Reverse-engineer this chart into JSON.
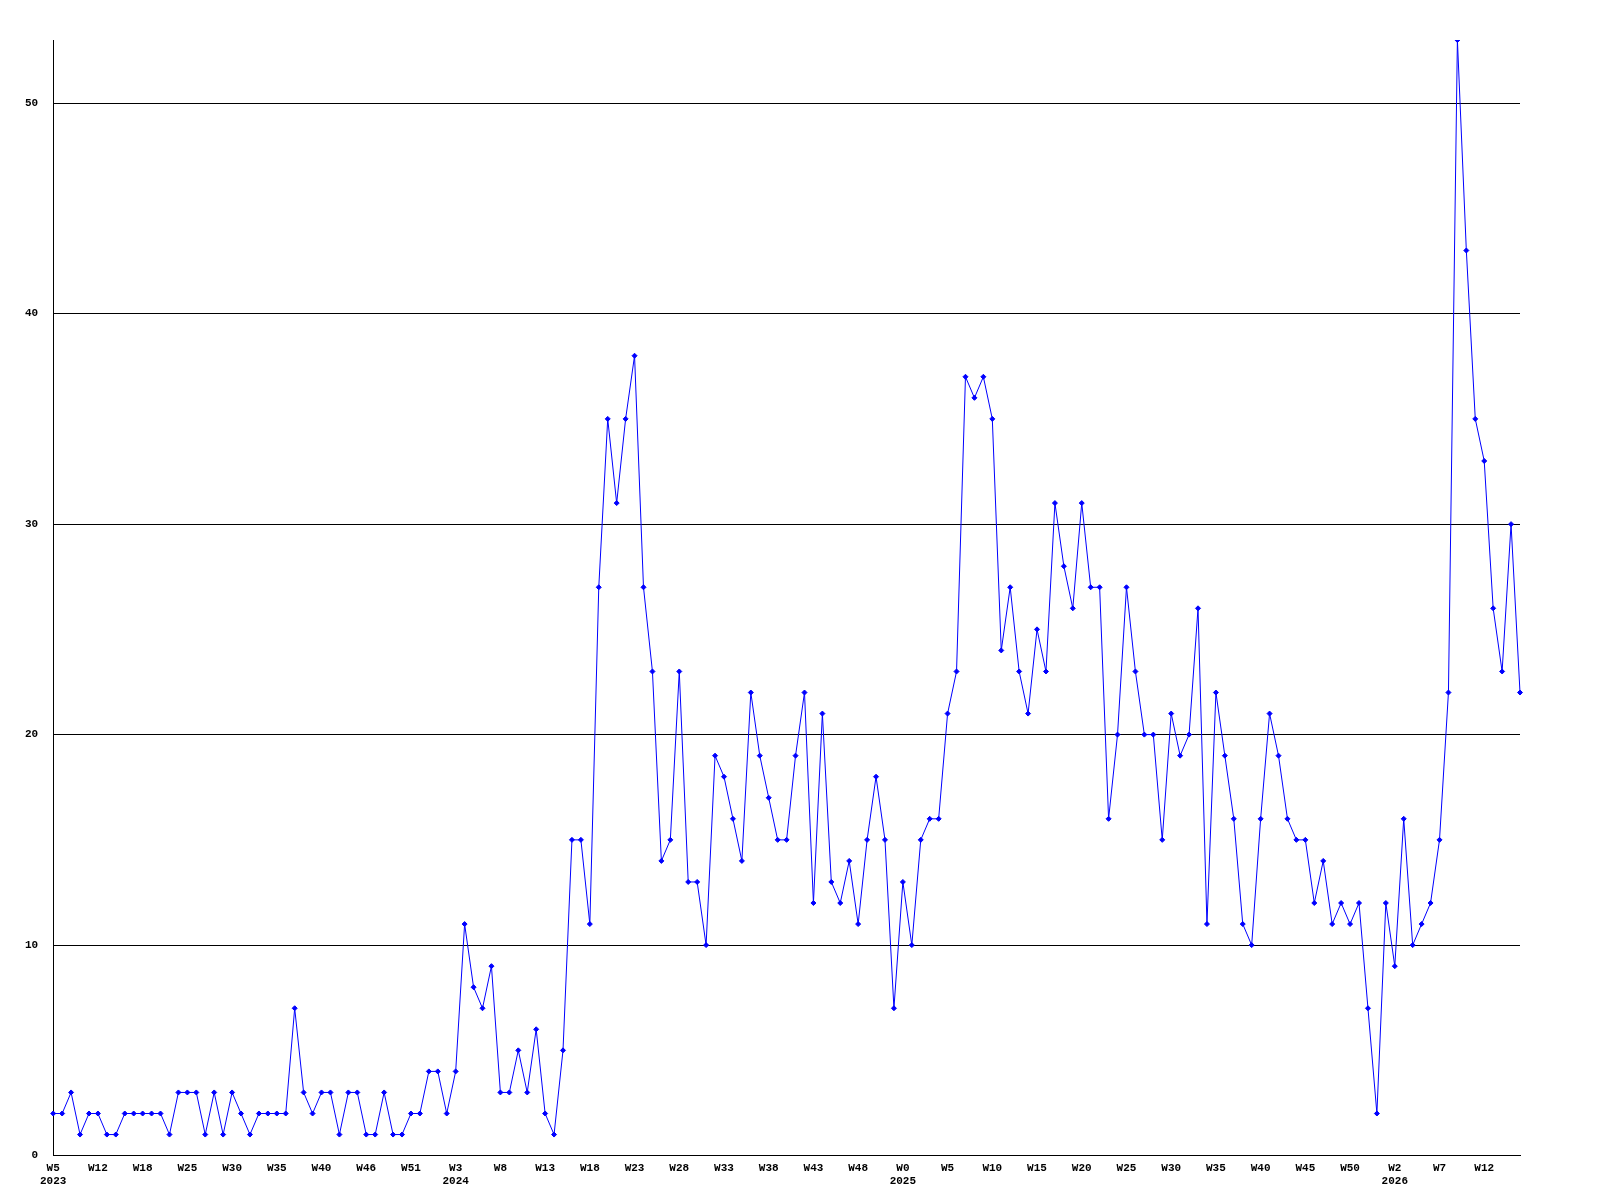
{
  "chart_data": {
    "type": "line",
    "categories": [
      "W5\n2023",
      null,
      null,
      null,
      null,
      "W12",
      null,
      null,
      null,
      null,
      "W18",
      null,
      null,
      null,
      null,
      "W25",
      null,
      null,
      null,
      null,
      "W30",
      null,
      null,
      null,
      null,
      "W35",
      null,
      null,
      null,
      null,
      "W40",
      null,
      null,
      null,
      null,
      "W46",
      null,
      null,
      null,
      null,
      "W51",
      null,
      null,
      null,
      null,
      "W3\n2024",
      null,
      null,
      null,
      null,
      "W8",
      null,
      null,
      null,
      null,
      "W13",
      null,
      null,
      null,
      null,
      "W18",
      null,
      null,
      null,
      null,
      "W23",
      null,
      null,
      null,
      null,
      "W28",
      null,
      null,
      null,
      null,
      "W33",
      null,
      null,
      null,
      null,
      "W38",
      null,
      null,
      null,
      null,
      "W43",
      null,
      null,
      null,
      null,
      "W48",
      null,
      null,
      null,
      null,
      "W0\n2025",
      null,
      null,
      null,
      null,
      "W5",
      null,
      null,
      null,
      null,
      "W10",
      null,
      null,
      null,
      null,
      "W15",
      null,
      null,
      null,
      null,
      "W20",
      null,
      null,
      null,
      null,
      "W25",
      null,
      null,
      null,
      null,
      "W30",
      null,
      null,
      null,
      null,
      "W35",
      null,
      null,
      null,
      null,
      "W40",
      null,
      null,
      null,
      null,
      "W45",
      null,
      null,
      null,
      null,
      "W50",
      null,
      null,
      null,
      null,
      "W2\n2026",
      null,
      null,
      null,
      null,
      "W7",
      null,
      null,
      null,
      null,
      "W12",
      null,
      null,
      null,
      null
    ],
    "series": [
      {
        "color": "#0000ff",
        "values": [
          2,
          2,
          3,
          1,
          2,
          2,
          1,
          1,
          2,
          2,
          2,
          2,
          2,
          1,
          3,
          3,
          3,
          1,
          3,
          1,
          3,
          2,
          1,
          2,
          2,
          2,
          2,
          7,
          3,
          2,
          3,
          3,
          1,
          3,
          3,
          1,
          1,
          3,
          1,
          1,
          2,
          2,
          4,
          4,
          2,
          4,
          11,
          8,
          7,
          9,
          3,
          3,
          5,
          3,
          6,
          2,
          1,
          5,
          15,
          15,
          11,
          27,
          35,
          31,
          35,
          38,
          27,
          23,
          14,
          15,
          23,
          13,
          13,
          10,
          19,
          18,
          16,
          14,
          22,
          19,
          17,
          15,
          15,
          19,
          22,
          12,
          21,
          13,
          12,
          14,
          11,
          15,
          18,
          15,
          7,
          13,
          10,
          15,
          16,
          16,
          21,
          23,
          37,
          36,
          37,
          35,
          24,
          27,
          23,
          21,
          25,
          23,
          31,
          28,
          26,
          31,
          27,
          27,
          16,
          20,
          27,
          23,
          20,
          20,
          15,
          21,
          19,
          20,
          26,
          11,
          22,
          19,
          16,
          11,
          10,
          16,
          21,
          19,
          16,
          15,
          15,
          12,
          14,
          11,
          12,
          11,
          12,
          7,
          2,
          12,
          9,
          16,
          10,
          11,
          12,
          15,
          22,
          53,
          43,
          35,
          33,
          26,
          23,
          30,
          22
        ]
      }
    ],
    "ylim": [
      0,
      53
    ],
    "yticks": [
      0,
      10,
      20,
      30,
      40,
      50
    ],
    "grid": "y",
    "marker": "diamond",
    "line_style": "solid"
  }
}
